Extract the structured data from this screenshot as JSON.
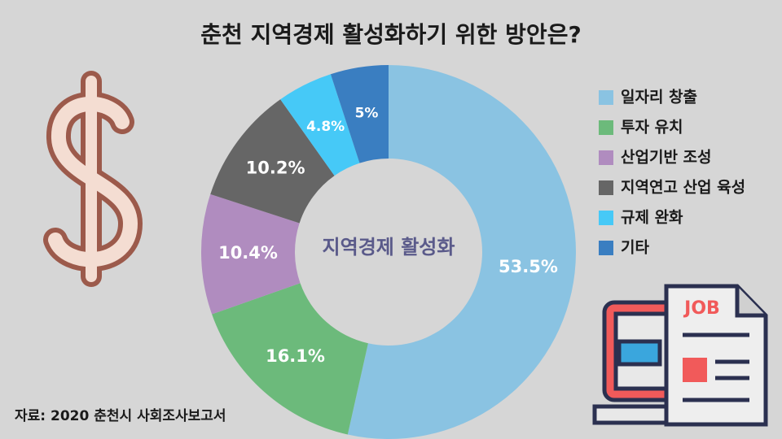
{
  "chart_data": {
    "type": "donut",
    "title": "춘천 지역경제 활성화하기 위한 방안은?",
    "center_label": "지역경제 활성화",
    "source": "자료: 2020 춘천시 사회조사보고서",
    "categories": [
      "일자리 창출",
      "투자 유치",
      "산업기반 조성",
      "지역연고 산업 육성",
      "규제 완화",
      "기타"
    ],
    "values": [
      53.5,
      16.1,
      10.4,
      10.2,
      4.8,
      5
    ],
    "value_labels": [
      "53.5%",
      "16.1%",
      "10.4%",
      "10.2%",
      "4.8%",
      "5%"
    ],
    "colors": [
      "#8ac3e2",
      "#6cba7b",
      "#b08cbf",
      "#666666",
      "#46c9f7",
      "#3a7ec1"
    ],
    "legend": "right"
  },
  "icon": {
    "job_text": "JOB"
  }
}
